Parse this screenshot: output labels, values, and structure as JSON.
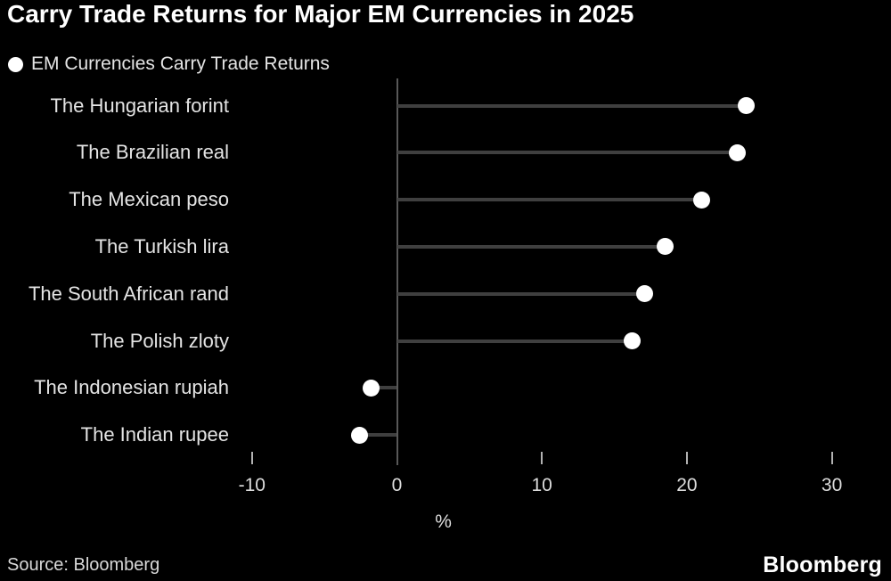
{
  "title": "Carry Trade Returns for Major EM Currencies in 2025",
  "legend": {
    "label": "EM Currencies Carry Trade Returns",
    "marker": "filled-circle",
    "marker_color": "#ffffff"
  },
  "footer": {
    "source": "Source: Bloomberg",
    "logo": "Bloomberg"
  },
  "colors": {
    "background": "#000000",
    "title": "#ffffff",
    "label_text": "#e4e4e4",
    "tick_text": "#dddddd",
    "stem": "#3f3f3f",
    "axis_line": "#585858",
    "tick_mark": "#b2b2b2",
    "dot": "#ffffff"
  },
  "chart_data": {
    "type": "scatter",
    "variant": "lollipop-horizontal",
    "orientation": "horizontal",
    "title": "Carry Trade Returns for Major EM Currencies in 2025",
    "series_name": "EM Currencies Carry Trade Returns",
    "categories": [
      "The Hungarian forint",
      "The Brazilian real",
      "The Mexican peso",
      "The Turkish lira",
      "The South African rand",
      "The Polish zloty",
      "The Indonesian rupiah",
      "The Indian rupee"
    ],
    "values": [
      24.1,
      23.5,
      21.0,
      18.5,
      17.1,
      16.2,
      -1.8,
      -2.6
    ],
    "xlabel": "%",
    "ylabel": "",
    "xlim": [
      -12,
      34
    ],
    "xtick_values": [
      -10,
      0,
      10,
      20,
      30
    ],
    "xtick_labels": [
      "-10",
      "0",
      "10",
      "20",
      "30"
    ],
    "grid": false,
    "zero_baseline": true,
    "legend_position": "top-left"
  }
}
